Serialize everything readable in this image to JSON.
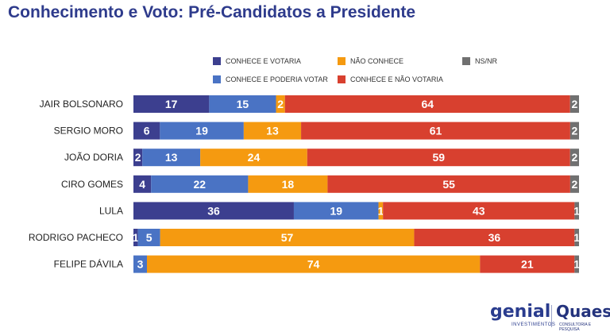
{
  "title": "Conhecimento e Voto: Pré-Candidatos a Presidente",
  "chart_data": {
    "type": "bar",
    "orientation": "horizontal-stacked-100",
    "categories": [
      "JAIR BOLSONARO",
      "SERGIO MORO",
      "JOÃO DORIA",
      "CIRO GOMES",
      "LULA",
      "RODRIGO PACHECO",
      "FELIPE DÁVILA"
    ],
    "series": [
      {
        "name": "CONHECE E VOTARIA",
        "color": "#3c3f8f",
        "values": [
          17,
          6,
          2,
          4,
          36,
          1,
          0
        ]
      },
      {
        "name": "CONHECE E PODERIA VOTAR",
        "color": "#4a73c4",
        "values": [
          15,
          19,
          13,
          22,
          19,
          5,
          3
        ]
      },
      {
        "name": "NÃO CONHECE",
        "color": "#f59a10",
        "values": [
          2,
          13,
          24,
          18,
          1,
          57,
          74
        ]
      },
      {
        "name": "CONHECE E NÃO VOTARIA",
        "color": "#d8402f",
        "values": [
          64,
          61,
          59,
          55,
          43,
          36,
          21
        ]
      },
      {
        "name": "NS/NR",
        "color": "#707070",
        "values": [
          2,
          2,
          2,
          2,
          1,
          1,
          1
        ]
      }
    ],
    "legend_position": "top"
  },
  "footer": {
    "logo1": "genial",
    "logo1_sub": "INVESTIMENTOS",
    "logo2": "Quaest",
    "logo2_sub": "CONSULTORIA E PESQUISA"
  }
}
